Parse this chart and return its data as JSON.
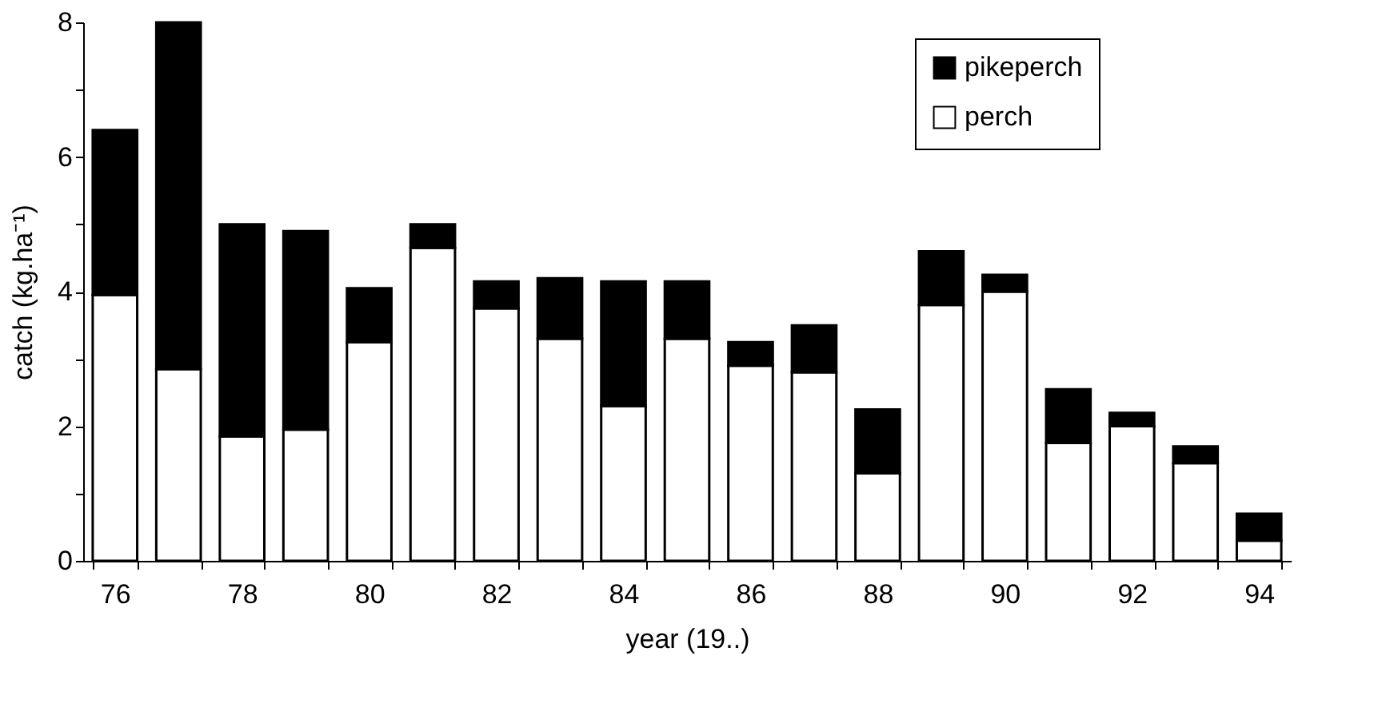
{
  "chart_data": {
    "type": "bar",
    "stacked": true,
    "xlabel": "year (19..)",
    "ylabel": "catch (kg.ha⁻¹)",
    "categories": [
      "76",
      null,
      "78",
      null,
      "80",
      null,
      "82",
      null,
      "84",
      null,
      "86",
      null,
      "88",
      null,
      "90",
      null,
      "92",
      null,
      "94"
    ],
    "series": [
      {
        "name": "perch",
        "color": "#ffffff",
        "values": [
          3.95,
          2.85,
          1.85,
          1.95,
          3.25,
          4.65,
          3.75,
          3.3,
          2.3,
          3.3,
          2.9,
          2.8,
          1.3,
          3.8,
          4.0,
          1.75,
          2.0,
          1.45,
          0.3
        ]
      },
      {
        "name": "pikeperch",
        "color": "#000000",
        "values": [
          2.45,
          5.15,
          3.15,
          2.95,
          0.8,
          0.35,
          0.4,
          0.9,
          1.85,
          0.85,
          0.35,
          0.7,
          0.95,
          0.8,
          0.25,
          0.8,
          0.2,
          0.25,
          0.4
        ]
      }
    ],
    "ylim": [
      0,
      8
    ],
    "yticks": [
      0,
      {
        "value": 1,
        "label": null
      },
      2,
      {
        "value": 3,
        "label": null
      },
      4,
      {
        "value": 5,
        "label": null
      },
      6,
      {
        "value": 7,
        "label": null
      },
      8
    ],
    "grid": false,
    "legend": "top"
  }
}
